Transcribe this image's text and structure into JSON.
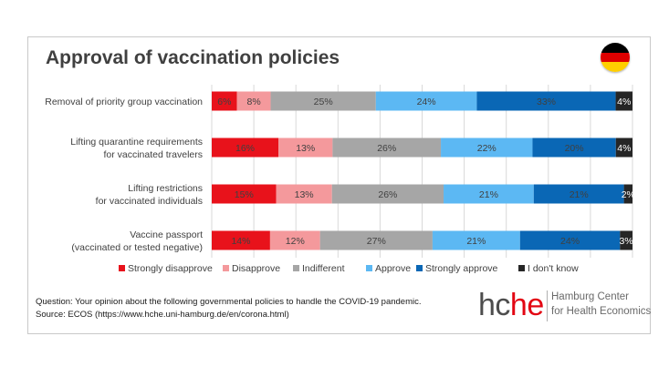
{
  "title": "Approval of vaccination policies",
  "flag_colors": [
    "#000000",
    "#dd0000",
    "#ffce00"
  ],
  "chart_data": {
    "type": "bar",
    "orientation": "horizontal",
    "stacked": true,
    "normalized": true,
    "categories": [
      "Removal of priority group vaccination",
      "Lifting quarantine requirements\nfor vaccinated travelers",
      "Lifting restrictions\nfor vaccinated individuals",
      "Vaccine passport\n(vaccinated or tested negative)"
    ],
    "series": [
      {
        "name": "Strongly disapprove",
        "color": "#e8121b",
        "values": [
          6,
          16,
          15,
          14
        ]
      },
      {
        "name": "Disapprove",
        "color": "#f4999c",
        "values": [
          8,
          13,
          13,
          12
        ]
      },
      {
        "name": "Indifferent",
        "color": "#a6a6a6",
        "values": [
          25,
          26,
          26,
          27
        ]
      },
      {
        "name": "Approve",
        "color": "#5cb8f3",
        "values": [
          24,
          22,
          21,
          21
        ]
      },
      {
        "name": "Strongly approve",
        "color": "#0a67b5",
        "values": [
          33,
          20,
          21,
          24
        ]
      },
      {
        "name": "I don't know",
        "color": "#262626",
        "values": [
          4,
          4,
          2,
          3
        ]
      }
    ],
    "data_labels": true,
    "legend_position": "bottom",
    "grid": "vertical"
  },
  "footnote": {
    "question": "Question: Your opinion about the following governmental policies to handle the COVID-19 pandemic.",
    "source": "Source: ECOS (https://www.hche.uni-hamburg.de/en/corona.html)"
  },
  "logo": {
    "mark_hc": "hc",
    "mark_he": "he",
    "line1": "Hamburg Center",
    "line2": "for Health Economics"
  }
}
